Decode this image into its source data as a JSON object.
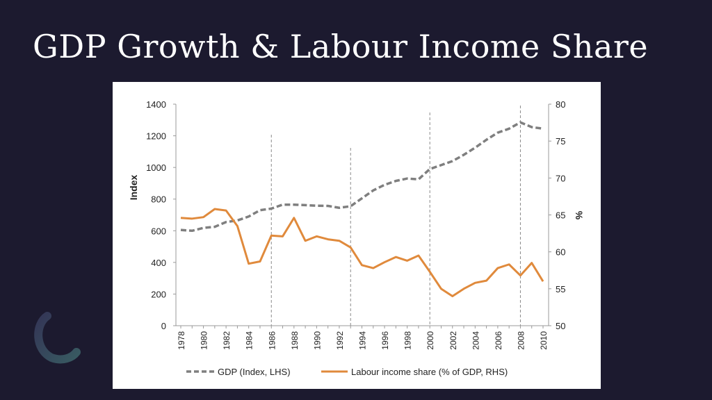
{
  "slide": {
    "title": "GDP Growth & Labour Income Share",
    "background_color": "#1c1a2f",
    "logo_icon": "crescent-arc-logo"
  },
  "chart_data": {
    "type": "line",
    "title": "",
    "x": [
      1978,
      1979,
      1980,
      1981,
      1982,
      1983,
      1984,
      1985,
      1986,
      1987,
      1988,
      1989,
      1990,
      1991,
      1992,
      1993,
      1994,
      1995,
      1996,
      1997,
      1998,
      1999,
      2000,
      2001,
      2002,
      2003,
      2004,
      2005,
      2006,
      2007,
      2008,
      2009,
      2010
    ],
    "x_tick_labels": [
      "1978",
      "1980",
      "1982",
      "1984",
      "1986",
      "1988",
      "1990",
      "1992",
      "1994",
      "1996",
      "1998",
      "2000",
      "2002",
      "2004",
      "2006",
      "2008",
      "2010"
    ],
    "ylabel_left": "Index",
    "ylabel_right": "%",
    "ylim_left": [
      0,
      1400
    ],
    "ylim_right": [
      50,
      80
    ],
    "y_ticks_left": [
      "0",
      "200",
      "400",
      "600",
      "800",
      "1000",
      "1200",
      "1400"
    ],
    "y_ticks_right": [
      "50",
      "55",
      "60",
      "65",
      "70",
      "75",
      "80"
    ],
    "grid": false,
    "legend_position": "bottom",
    "vertical_markers": [
      1986,
      1993,
      2000,
      2008
    ],
    "series": [
      {
        "name": "GDP (Index, LHS)",
        "axis": "left",
        "style": "dashed",
        "color": "#7f7f7f",
        "values": [
          605,
          600,
          618,
          625,
          655,
          665,
          690,
          730,
          740,
          765,
          765,
          762,
          758,
          757,
          745,
          755,
          805,
          855,
          890,
          915,
          930,
          925,
          990,
          1015,
          1040,
          1080,
          1125,
          1175,
          1220,
          1245,
          1285,
          1255,
          1245
        ]
      },
      {
        "name": "Labour income share (% of GDP, RHS)",
        "axis": "right",
        "style": "solid",
        "color": "#e08a3c",
        "values": [
          64.6,
          64.5,
          64.7,
          65.8,
          65.6,
          63.5,
          58.4,
          58.7,
          62.2,
          62.1,
          64.6,
          61.5,
          62.1,
          61.7,
          61.5,
          60.6,
          58.2,
          57.8,
          58.6,
          59.3,
          58.8,
          59.5,
          57.3,
          55.0,
          54.0,
          55.0,
          55.8,
          56.1,
          57.8,
          58.3,
          56.8,
          58.5,
          56.0
        ]
      }
    ]
  }
}
